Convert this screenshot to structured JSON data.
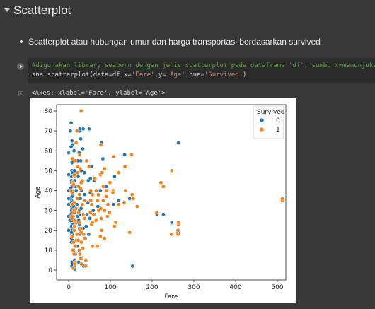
{
  "section": {
    "title": "Scatterplot"
  },
  "text": {
    "bullet": "Scatterplot atau hubungan umur dan harga transportasi berdasarkan survived"
  },
  "code": {
    "line1": "#digunakan library seaborn dengan jenis scatterplot pada dataframe 'df', sumbu x=menunjukan fare",
    "line2_a": "sns.scatterplot(data=df,x=",
    "line2_s1": "'Fare'",
    "line2_b": ",y=",
    "line2_s2": "'Age'",
    "line2_c": ",hue=",
    "line2_s3": "'Survived'",
    "line2_d": ")"
  },
  "output": {
    "repr": "<Axes: xlabel='Fare', ylabel='Age'>"
  },
  "colors": {
    "series0": "#1f77b4",
    "series1": "#ff7f0e"
  },
  "chart_data": {
    "type": "scatter",
    "xlabel": "Fare",
    "ylabel": "Age",
    "xlim": [
      -25,
      540
    ],
    "ylim": [
      -3,
      82
    ],
    "xticks": [
      0,
      100,
      200,
      300,
      400,
      500
    ],
    "yticks": [
      0,
      10,
      20,
      30,
      40,
      50,
      60,
      70,
      80
    ],
    "legend": {
      "title": "Survived",
      "position": "top-right"
    },
    "series": [
      {
        "name": "0",
        "points": [
          [
            7,
            22
          ],
          [
            7,
            35
          ],
          [
            8,
            54
          ],
          [
            8,
            2
          ],
          [
            21,
            27
          ],
          [
            7,
            14
          ],
          [
            8,
            4
          ],
          [
            26,
            58
          ],
          [
            31,
            40
          ],
          [
            29,
            66
          ],
          [
            8,
            42
          ],
          [
            8,
            21
          ],
          [
            26,
            18
          ],
          [
            7,
            14
          ],
          [
            18,
            40
          ],
          [
            21,
            55
          ],
          [
            7,
            45
          ],
          [
            7,
            44
          ],
          [
            7,
            20
          ],
          [
            8,
            39
          ],
          [
            29,
            19
          ],
          [
            8,
            17
          ],
          [
            51,
            26
          ],
          [
            7,
            32
          ],
          [
            7,
            16
          ],
          [
            26,
            21
          ],
          [
            7,
            26
          ],
          [
            8,
            20
          ],
          [
            8,
            18
          ],
          [
            8,
            27
          ],
          [
            9,
            40
          ],
          [
            15,
            2
          ],
          [
            7,
            34
          ],
          [
            35,
            21
          ],
          [
            8,
            28
          ],
          [
            47,
            45
          ],
          [
            8,
            30
          ],
          [
            7,
            24
          ],
          [
            7,
            29
          ],
          [
            8,
            33
          ],
          [
            34,
            61
          ],
          [
            26,
            23
          ],
          [
            8,
            50
          ],
          [
            9,
            23
          ],
          [
            7,
            19
          ],
          [
            10,
            38
          ],
          [
            15,
            0.5
          ],
          [
            52,
            46
          ],
          [
            7,
            47
          ],
          [
            14,
            34
          ],
          [
            28,
            36
          ],
          [
            7,
            26
          ],
          [
            14,
            29
          ],
          [
            7,
            22
          ],
          [
            8,
            25
          ],
          [
            27,
            70
          ],
          [
            13,
            22
          ],
          [
            8,
            65
          ],
          [
            24,
            25
          ],
          [
            8,
            40
          ],
          [
            30,
            50
          ],
          [
            8,
            31
          ],
          [
            7,
            30
          ],
          [
            26,
            30
          ],
          [
            9,
            44
          ],
          [
            8,
            37
          ],
          [
            146,
            36
          ],
          [
            82,
            56
          ],
          [
            79,
            64
          ],
          [
            134,
            58
          ],
          [
            27,
            28
          ],
          [
            263,
            64
          ],
          [
            247,
            24
          ],
          [
            262,
            19
          ],
          [
            110,
            47
          ],
          [
            212,
            28
          ],
          [
            227,
            28
          ],
          [
            153,
            2
          ],
          [
            52,
            39
          ],
          [
            61,
            45
          ],
          [
            29,
            55
          ],
          [
            38,
            49
          ],
          [
            76,
            40
          ],
          [
            25,
            59
          ],
          [
            30,
            31
          ],
          [
            27,
            71
          ],
          [
            35,
            71
          ],
          [
            49,
            71
          ],
          [
            59,
            30
          ],
          [
            90,
            42
          ],
          [
            108,
            33
          ],
          [
            120,
            35
          ],
          [
            9,
            49
          ],
          [
            14,
            45
          ],
          [
            12,
            32
          ],
          [
            5,
            41
          ],
          [
            4,
            36
          ],
          [
            11,
            30
          ],
          [
            6,
            28
          ],
          [
            3,
            25
          ],
          [
            14,
            50
          ],
          [
            17,
            42
          ],
          [
            20,
            33
          ],
          [
            23,
            47
          ],
          [
            19,
            24
          ],
          [
            9,
            15
          ],
          [
            12,
            10
          ],
          [
            14,
            5
          ],
          [
            16,
            8
          ],
          [
            21,
            12
          ],
          [
            13,
            60
          ],
          [
            10,
            63
          ],
          [
            6,
            62
          ],
          [
            4,
            70
          ],
          [
            6,
            74
          ],
          [
            24,
            4
          ],
          [
            32,
            6
          ],
          [
            36,
            2
          ],
          [
            40,
            16
          ],
          [
            42,
            22
          ],
          [
            44,
            28
          ],
          [
            46,
            34
          ],
          [
            38,
            38
          ],
          [
            48,
            18
          ],
          [
            55,
            52
          ],
          [
            62,
            28
          ],
          [
            70,
            32
          ],
          [
            0,
            36
          ],
          [
            0,
            40
          ],
          [
            0,
            20
          ],
          [
            0,
            27
          ],
          [
            0,
            33
          ],
          [
            0,
            48
          ],
          [
            0,
            59
          ]
        ]
      },
      {
        "name": "1",
        "points": [
          [
            71,
            38
          ],
          [
            8,
            26
          ],
          [
            53,
            35
          ],
          [
            11,
            27
          ],
          [
            30,
            14
          ],
          [
            16,
            4
          ],
          [
            26,
            58
          ],
          [
            16,
            55
          ],
          [
            13,
            34
          ],
          [
            35,
            28
          ],
          [
            18,
            15
          ],
          [
            26,
            38
          ],
          [
            26,
            38
          ],
          [
            12,
            14
          ],
          [
            146,
            19
          ],
          [
            15,
            3
          ],
          [
            22,
            49
          ],
          [
            10,
            29
          ],
          [
            30,
            21
          ],
          [
            41,
            5
          ],
          [
            77,
            63
          ],
          [
            76,
            48
          ],
          [
            27,
            20
          ],
          [
            15,
            24
          ],
          [
            13,
            8
          ],
          [
            26,
            24
          ],
          [
            8,
            33
          ],
          [
            30,
            19
          ],
          [
            120,
            49
          ],
          [
            90,
            37
          ],
          [
            83,
            35
          ],
          [
            91,
            40
          ],
          [
            76,
            17
          ],
          [
            13,
            30
          ],
          [
            52,
            29
          ],
          [
            55,
            23
          ],
          [
            86,
            30
          ],
          [
            9,
            39
          ],
          [
            41,
            2
          ],
          [
            69,
            12
          ],
          [
            39,
            26
          ],
          [
            11,
            44
          ],
          [
            57,
            12
          ],
          [
            24,
            42
          ],
          [
            36,
            18
          ],
          [
            15,
            12
          ],
          [
            57,
            24
          ],
          [
            30,
            44
          ],
          [
            263,
            23
          ],
          [
            211,
            29
          ],
          [
            221,
            44
          ],
          [
            227,
            42
          ],
          [
            247,
            50
          ],
          [
            263,
            23
          ],
          [
            263,
            24
          ],
          [
            512,
            35
          ],
          [
            512,
            36
          ],
          [
            164,
            32
          ],
          [
            152,
            38
          ],
          [
            151,
            58
          ],
          [
            135,
            52
          ],
          [
            113,
            24
          ],
          [
            108,
            57
          ],
          [
            107,
            40
          ],
          [
            110,
            22
          ],
          [
            99,
            44
          ],
          [
            98,
            29
          ],
          [
            93,
            27
          ],
          [
            86,
            16
          ],
          [
            79,
            20
          ],
          [
            77,
            31
          ],
          [
            83,
            42
          ],
          [
            94,
            33
          ],
          [
            120,
            33
          ],
          [
            133,
            34
          ],
          [
            155,
            36
          ],
          [
            30,
            80
          ],
          [
            262,
            20
          ],
          [
            262,
            18
          ],
          [
            246,
            18
          ],
          [
            136,
            40
          ],
          [
            106,
            39
          ],
          [
            7,
            27
          ],
          [
            14,
            47
          ],
          [
            22,
            52
          ],
          [
            33,
            45
          ],
          [
            39,
            35
          ],
          [
            18,
            31
          ],
          [
            13,
            20
          ],
          [
            20,
            18
          ],
          [
            25,
            10
          ],
          [
            29,
            6
          ],
          [
            31,
            3
          ],
          [
            11,
            1
          ],
          [
            23,
            15
          ],
          [
            27,
            8
          ],
          [
            34,
            11
          ],
          [
            38,
            16
          ],
          [
            16,
            25
          ],
          [
            24,
            29
          ],
          [
            13,
            48
          ],
          [
            28,
            51
          ],
          [
            43,
            55
          ],
          [
            49,
            52
          ],
          [
            53,
            40
          ],
          [
            60,
            28
          ],
          [
            63,
            46
          ],
          [
            66,
            25
          ],
          [
            72,
            30
          ],
          [
            78,
            26
          ],
          [
            55,
            33
          ],
          [
            57,
            38
          ],
          [
            66,
            40
          ],
          [
            69,
            35
          ],
          [
            80,
            49
          ],
          [
            86,
            51
          ],
          [
            12,
            43
          ],
          [
            21,
            36
          ],
          [
            29,
            41
          ],
          [
            33,
            33
          ],
          [
            8,
            17
          ],
          [
            10,
            10
          ],
          [
            14,
            22
          ],
          [
            6,
            40
          ],
          [
            9,
            56
          ],
          [
            18,
            64
          ],
          [
            20,
            70
          ]
        ]
      }
    ]
  }
}
